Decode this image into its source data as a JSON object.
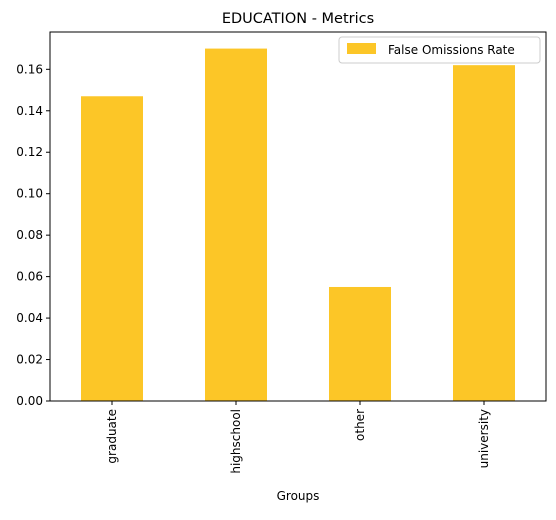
{
  "chart_data": {
    "type": "bar",
    "title": "EDUCATION - Metrics",
    "xlabel": "Groups",
    "ylabel": "",
    "categories": [
      "graduate",
      "highschool",
      "other",
      "university"
    ],
    "series": [
      {
        "name": "False Omissions Rate",
        "values": [
          0.147,
          0.17,
          0.055,
          0.162
        ],
        "color": "#fcc627"
      }
    ],
    "ylim": [
      0,
      0.178
    ],
    "yticks": [
      0.0,
      0.02,
      0.04,
      0.06,
      0.08,
      0.1,
      0.12,
      0.14,
      0.16
    ],
    "ytick_labels": [
      "0.00",
      "0.02",
      "0.04",
      "0.06",
      "0.08",
      "0.10",
      "0.12",
      "0.14",
      "0.16"
    ],
    "legend": {
      "position": "top-right",
      "labels": [
        "False Omissions Rate"
      ]
    },
    "grid": false
  }
}
